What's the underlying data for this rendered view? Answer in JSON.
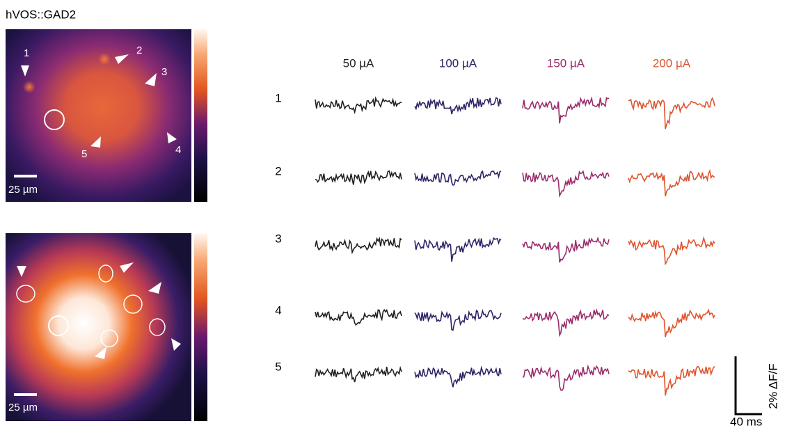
{
  "figure": {
    "title": "hVOS::GAD2",
    "panels": [
      {
        "scale_bar": "25 µm",
        "cell_labels": [
          "1",
          "2",
          "3",
          "4",
          "5"
        ]
      },
      {
        "scale_bar": "25 µm"
      }
    ],
    "columns": [
      {
        "label": "50 µA",
        "color": "#231f20"
      },
      {
        "label": "100 µA",
        "color": "#2e2466"
      },
      {
        "label": "150 µA",
        "color": "#9b2a6b"
      },
      {
        "label": "200 µA",
        "color": "#e0532b"
      }
    ],
    "rows": [
      "1",
      "2",
      "3",
      "4",
      "5"
    ],
    "scale": {
      "y": "2% ΔF/F",
      "x": "40 ms"
    }
  }
}
